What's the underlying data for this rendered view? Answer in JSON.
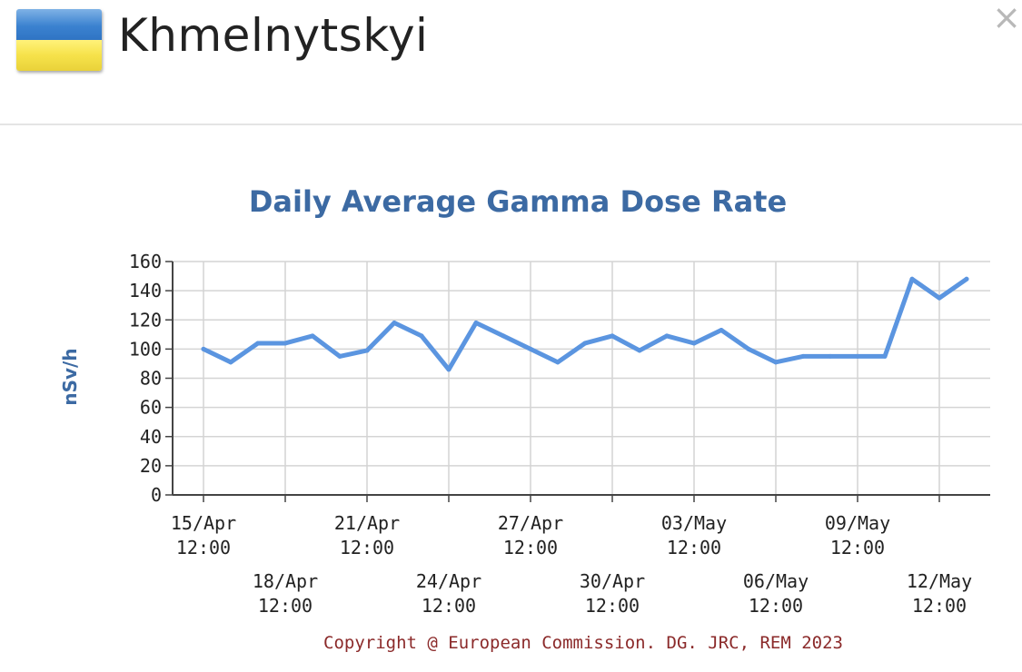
{
  "header": {
    "title": "Khmelnytskyi",
    "close_label": "×",
    "flag_colors": [
      "#3b82d0",
      "#f6e24a"
    ]
  },
  "chart_data": {
    "type": "line",
    "title": "Daily Average Gamma Dose Rate",
    "ylabel": "nSv/h",
    "xlabel": "",
    "ylim": [
      0,
      160
    ],
    "yticks": [
      0,
      20,
      40,
      60,
      80,
      100,
      120,
      140,
      160
    ],
    "grid": true,
    "line_color": "#5b95e0",
    "x": [
      "15/Apr 12:00",
      "16/Apr 12:00",
      "17/Apr 12:00",
      "18/Apr 12:00",
      "19/Apr 12:00",
      "20/Apr 12:00",
      "21/Apr 12:00",
      "22/Apr 12:00",
      "23/Apr 12:00",
      "24/Apr 12:00",
      "25/Apr 12:00",
      "26/Apr 12:00",
      "27/Apr 12:00",
      "28/Apr 12:00",
      "29/Apr 12:00",
      "30/Apr 12:00",
      "01/May 12:00",
      "02/May 12:00",
      "03/May 12:00",
      "04/May 12:00",
      "05/May 12:00",
      "06/May 12:00",
      "07/May 12:00",
      "08/May 12:00",
      "09/May 12:00",
      "10/May 12:00",
      "11/May 12:00",
      "12/May 12:00",
      "13/May 12:00"
    ],
    "values": [
      100,
      91,
      104,
      104,
      109,
      95,
      99,
      118,
      109,
      86,
      118,
      109,
      100,
      91,
      104,
      109,
      99,
      109,
      104,
      113,
      100,
      91,
      95,
      95,
      95,
      95,
      148,
      135,
      148
    ],
    "tick_labels": [
      {
        "index": 0,
        "line1": "15/Apr",
        "line2": "12:00",
        "row": 0
      },
      {
        "index": 3,
        "line1": "18/Apr",
        "line2": "12:00",
        "row": 1
      },
      {
        "index": 6,
        "line1": "21/Apr",
        "line2": "12:00",
        "row": 0
      },
      {
        "index": 9,
        "line1": "24/Apr",
        "line2": "12:00",
        "row": 1
      },
      {
        "index": 12,
        "line1": "27/Apr",
        "line2": "12:00",
        "row": 0
      },
      {
        "index": 15,
        "line1": "30/Apr",
        "line2": "12:00",
        "row": 1
      },
      {
        "index": 18,
        "line1": "03/May",
        "line2": "12:00",
        "row": 0
      },
      {
        "index": 21,
        "line1": "06/May",
        "line2": "12:00",
        "row": 1
      },
      {
        "index": 24,
        "line1": "09/May",
        "line2": "12:00",
        "row": 0
      },
      {
        "index": 27,
        "line1": "12/May",
        "line2": "12:00",
        "row": 1
      }
    ],
    "copyright": "Copyright @ European Commission. DG. JRC, REM 2023"
  }
}
